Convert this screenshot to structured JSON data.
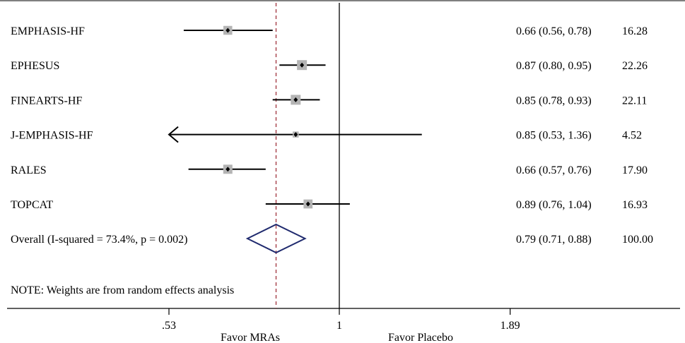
{
  "chart_data": {
    "type": "forest",
    "scale": "log",
    "studies": [
      {
        "name": "EMPHASIS-HF",
        "estimate": 0.66,
        "lower": 0.56,
        "upper": 0.78,
        "ci_text": "0.66 (0.56, 0.78)",
        "weight": "16.28",
        "arrow_left": false
      },
      {
        "name": "EPHESUS",
        "estimate": 0.87,
        "lower": 0.8,
        "upper": 0.95,
        "ci_text": "0.87 (0.80, 0.95)",
        "weight": "22.26",
        "arrow_left": false
      },
      {
        "name": "FINEARTS-HF",
        "estimate": 0.85,
        "lower": 0.78,
        "upper": 0.93,
        "ci_text": "0.85 (0.78, 0.93)",
        "weight": "22.11",
        "arrow_left": false
      },
      {
        "name": "J-EMPHASIS-HF",
        "estimate": 0.85,
        "lower": 0.53,
        "upper": 1.36,
        "ci_text": "0.85 (0.53, 1.36)",
        "weight": "4.52",
        "arrow_left": true
      },
      {
        "name": "RALES",
        "estimate": 0.66,
        "lower": 0.57,
        "upper": 0.76,
        "ci_text": "0.66 (0.57, 0.76)",
        "weight": "17.90",
        "arrow_left": false
      },
      {
        "name": "TOPCAT",
        "estimate": 0.89,
        "lower": 0.76,
        "upper": 1.04,
        "ci_text": "0.89 (0.76, 1.04)",
        "weight": "16.93",
        "arrow_left": false
      }
    ],
    "overall": {
      "label": "Overall  (I-squared = 73.4%, p = 0.002)",
      "estimate": 0.79,
      "lower": 0.71,
      "upper": 0.88,
      "ci_text": "0.79 (0.71, 0.88)",
      "weight": "100.00"
    },
    "note": "NOTE: Weights are from random effects analysis",
    "x_ticks": [
      {
        "value": 0.53,
        "label": ".53"
      },
      {
        "value": 1,
        "label": "1"
      },
      {
        "value": 1.89,
        "label": "1.89"
      }
    ],
    "reference_value": 1,
    "favor_left": "Favor MRAs",
    "favor_right": "Favor Placebo",
    "colors": {
      "marker_box": "#b4b4b4",
      "diamond": "#1f2a6e",
      "overall_line": "#a0323c",
      "axis": "#000000"
    }
  }
}
